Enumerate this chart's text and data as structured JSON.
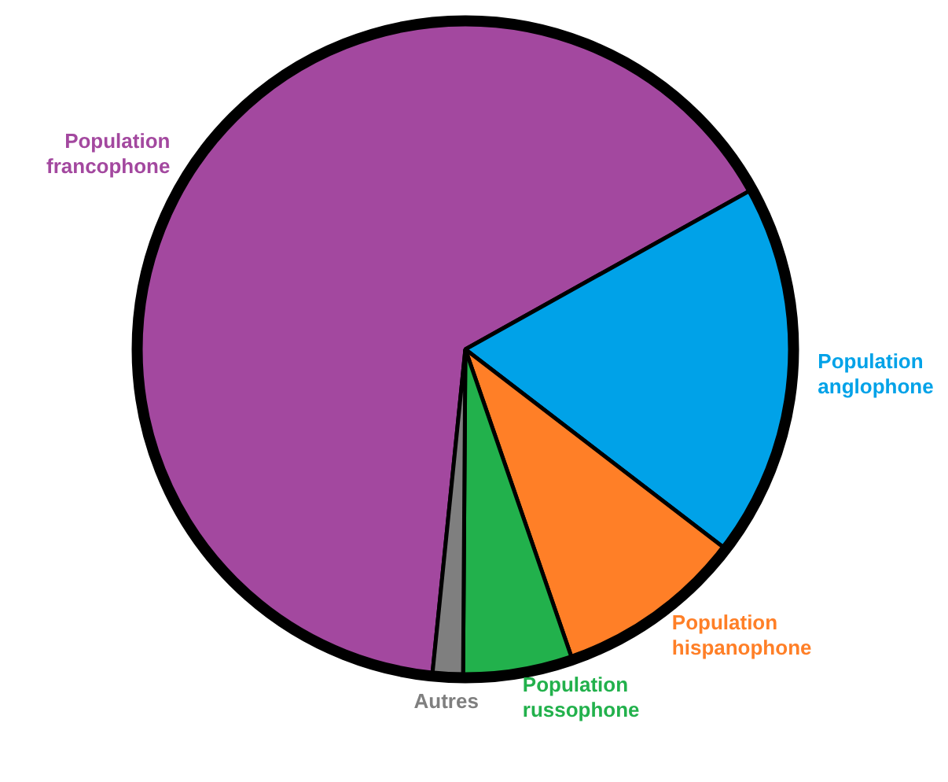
{
  "chart_data": {
    "type": "pie",
    "categories": [
      "Population francophone",
      "Population anglophone",
      "Population hispanophone",
      "Population russophone",
      "Autres"
    ],
    "values": [
      65.3,
      18.5,
      9.3,
      5.4,
      1.5
    ],
    "colors": [
      "#a3489f",
      "#00a2e8",
      "#ff7f27",
      "#22b14c",
      "#7f7f7f"
    ],
    "legend": false
  }
}
